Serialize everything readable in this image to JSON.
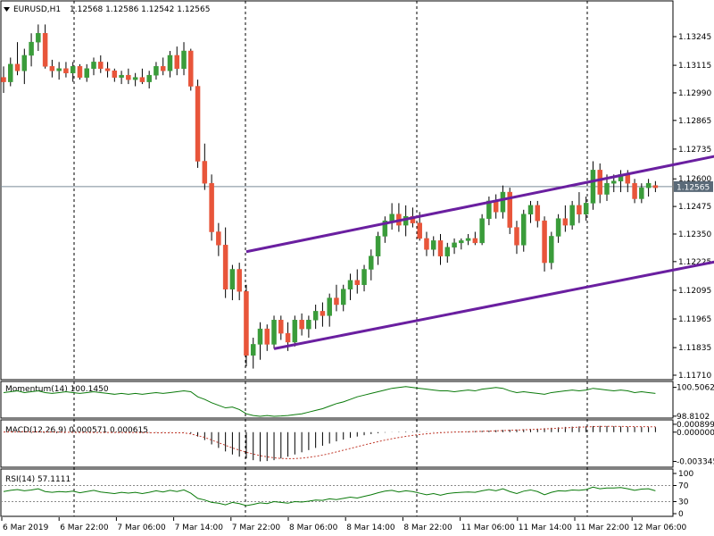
{
  "window": {
    "symbol_label": "EURUSD,H1",
    "ohlc_values": "1.12568 1.12586 1.12542 1.12565",
    "menu_arrow": "triangle-down-icon"
  },
  "colors": {
    "bull_candle": "#3a9c3a",
    "bear_candle": "#e8553a",
    "channel": "#6a1fa0",
    "indicator_line": "#0a7a0a",
    "macd_signal": "#c0392b",
    "grid_dash": "#000000",
    "frame": "#000000",
    "price_tag_bg": "#5a6a78"
  },
  "chart_data": {
    "type": "candlestick",
    "symbol": "EURUSD",
    "timeframe": "H1",
    "current_price": 1.12565,
    "current_price_label": "1.12565",
    "y_ticks": [
      "1.13245",
      "1.13115",
      "1.12990",
      "1.12865",
      "1.12735",
      "1.12600",
      "1.12475",
      "1.12350",
      "1.12225",
      "1.12095",
      "1.11965",
      "1.11835",
      "1.11710"
    ],
    "ylim": [
      1.1171,
      1.1333
    ],
    "x_tick_labels": [
      "6 Mar 2019",
      "6 Mar 22:00",
      "7 Mar 06:00",
      "7 Mar 14:00",
      "7 Mar 22:00",
      "8 Mar 06:00",
      "8 Mar 14:00",
      "8 Mar 22:00",
      "11 Mar 06:00",
      "11 Mar 14:00",
      "11 Mar 22:00",
      "12 Mar 06:00"
    ],
    "vertical_markers": [
      "6 Mar 22:00",
      "7 Mar 22:00",
      "8 Mar 22:00",
      "11 Mar 22:00"
    ],
    "candles": [
      [
        1.1306,
        1.1311,
        1.1299,
        1.1304
      ],
      [
        1.1304,
        1.1315,
        1.1302,
        1.1312
      ],
      [
        1.1312,
        1.1322,
        1.1307,
        1.1309
      ],
      [
        1.1309,
        1.1319,
        1.1303,
        1.1316
      ],
      [
        1.1316,
        1.1326,
        1.1311,
        1.1322
      ],
      [
        1.1322,
        1.133,
        1.1318,
        1.1326
      ],
      [
        1.1326,
        1.133,
        1.131,
        1.1311
      ],
      [
        1.1311,
        1.1314,
        1.1306,
        1.1309
      ],
      [
        1.1309,
        1.1313,
        1.1305,
        1.131
      ],
      [
        1.131,
        1.1313,
        1.1306,
        1.1308
      ],
      [
        1.1308,
        1.1313,
        1.1304,
        1.1311
      ],
      [
        1.1311,
        1.1312,
        1.1305,
        1.1306
      ],
      [
        1.1306,
        1.1312,
        1.1304,
        1.131
      ],
      [
        1.131,
        1.1315,
        1.1307,
        1.1313
      ],
      [
        1.1313,
        1.1316,
        1.1308,
        1.131
      ],
      [
        1.131,
        1.1313,
        1.1306,
        1.1309
      ],
      [
        1.1309,
        1.131,
        1.1304,
        1.1306
      ],
      [
        1.1306,
        1.1309,
        1.1303,
        1.1307
      ],
      [
        1.1307,
        1.131,
        1.1303,
        1.1305
      ],
      [
        1.1305,
        1.1308,
        1.1302,
        1.1306
      ],
      [
        1.1306,
        1.131,
        1.1303,
        1.1304
      ],
      [
        1.1304,
        1.1309,
        1.1301,
        1.1307
      ],
      [
        1.1307,
        1.1313,
        1.1305,
        1.1311
      ],
      [
        1.1311,
        1.1315,
        1.1307,
        1.1309
      ],
      [
        1.1309,
        1.1318,
        1.1306,
        1.1316
      ],
      [
        1.1316,
        1.132,
        1.1307,
        1.131
      ],
      [
        1.131,
        1.1322,
        1.1307,
        1.1318
      ],
      [
        1.1318,
        1.1319,
        1.13,
        1.1302
      ],
      [
        1.1302,
        1.1305,
        1.1265,
        1.1268
      ],
      [
        1.1268,
        1.1276,
        1.1255,
        1.1258
      ],
      [
        1.1258,
        1.1262,
        1.1232,
        1.1236
      ],
      [
        1.1236,
        1.124,
        1.1225,
        1.123
      ],
      [
        1.123,
        1.1238,
        1.1206,
        1.121
      ],
      [
        1.121,
        1.1221,
        1.1205,
        1.1219
      ],
      [
        1.1219,
        1.1222,
        1.1205,
        1.1209
      ],
      [
        1.1209,
        1.1212,
        1.1175,
        1.118
      ],
      [
        1.118,
        1.1188,
        1.1174,
        1.1185
      ],
      [
        1.1185,
        1.1195,
        1.1178,
        1.1192
      ],
      [
        1.1192,
        1.1194,
        1.1182,
        1.1185
      ],
      [
        1.1185,
        1.1198,
        1.1183,
        1.1196
      ],
      [
        1.1196,
        1.1198,
        1.1187,
        1.119
      ],
      [
        1.119,
        1.1195,
        1.1182,
        1.1186
      ],
      [
        1.1186,
        1.1198,
        1.1184,
        1.1196
      ],
      [
        1.1196,
        1.1199,
        1.1189,
        1.1192
      ],
      [
        1.1192,
        1.1198,
        1.1188,
        1.1196
      ],
      [
        1.1196,
        1.1203,
        1.1192,
        1.12
      ],
      [
        1.12,
        1.1204,
        1.1193,
        1.1198
      ],
      [
        1.1198,
        1.1208,
        1.1193,
        1.1206
      ],
      [
        1.1206,
        1.1212,
        1.12,
        1.1203
      ],
      [
        1.1203,
        1.1212,
        1.12,
        1.121
      ],
      [
        1.121,
        1.1217,
        1.1205,
        1.1214
      ],
      [
        1.1214,
        1.1219,
        1.1208,
        1.1212
      ],
      [
        1.1212,
        1.1221,
        1.1209,
        1.1219
      ],
      [
        1.1219,
        1.1228,
        1.1214,
        1.1225
      ],
      [
        1.1225,
        1.1236,
        1.1221,
        1.1234
      ],
      [
        1.1234,
        1.1243,
        1.1231,
        1.1241
      ],
      [
        1.1241,
        1.1249,
        1.1237,
        1.1244
      ],
      [
        1.1244,
        1.1249,
        1.1236,
        1.1239
      ],
      [
        1.1239,
        1.1248,
        1.1234,
        1.1243
      ],
      [
        1.1243,
        1.1247,
        1.1238,
        1.124
      ],
      [
        1.124,
        1.1245,
        1.1232,
        1.1233
      ],
      [
        1.1233,
        1.1236,
        1.1225,
        1.1228
      ],
      [
        1.1228,
        1.1234,
        1.1225,
        1.1232
      ],
      [
        1.1232,
        1.1235,
        1.1221,
        1.1225
      ],
      [
        1.1225,
        1.1231,
        1.1222,
        1.1229
      ],
      [
        1.1229,
        1.1233,
        1.1226,
        1.1231
      ],
      [
        1.1231,
        1.1233,
        1.1228,
        1.1232
      ],
      [
        1.1232,
        1.1235,
        1.123,
        1.1233
      ],
      [
        1.1233,
        1.1236,
        1.123,
        1.1231
      ],
      [
        1.1231,
        1.1244,
        1.123,
        1.1242
      ],
      [
        1.1242,
        1.1252,
        1.1239,
        1.125
      ],
      [
        1.125,
        1.1253,
        1.1242,
        1.1245
      ],
      [
        1.1245,
        1.1257,
        1.1242,
        1.1254
      ],
      [
        1.1254,
        1.1256,
        1.1235,
        1.1238
      ],
      [
        1.1238,
        1.1241,
        1.1226,
        1.123
      ],
      [
        1.123,
        1.1246,
        1.1227,
        1.1244
      ],
      [
        1.1244,
        1.125,
        1.124,
        1.1248
      ],
      [
        1.1248,
        1.125,
        1.1238,
        1.1241
      ],
      [
        1.1241,
        1.1243,
        1.1218,
        1.1222
      ],
      [
        1.1222,
        1.1236,
        1.1219,
        1.1234
      ],
      [
        1.1234,
        1.1244,
        1.1231,
        1.1242
      ],
      [
        1.1242,
        1.1248,
        1.1236,
        1.1239
      ],
      [
        1.1239,
        1.125,
        1.1237,
        1.1248
      ],
      [
        1.1248,
        1.1254,
        1.124,
        1.1244
      ],
      [
        1.1244,
        1.1252,
        1.1241,
        1.1249
      ],
      [
        1.1249,
        1.1268,
        1.1246,
        1.1264
      ],
      [
        1.1264,
        1.1267,
        1.1249,
        1.1253
      ],
      [
        1.1253,
        1.1262,
        1.125,
        1.1258
      ],
      [
        1.1258,
        1.1262,
        1.1254,
        1.1259
      ],
      [
        1.1259,
        1.1264,
        1.1254,
        1.1262
      ],
      [
        1.1262,
        1.1264,
        1.1254,
        1.1258
      ],
      [
        1.1258,
        1.126,
        1.1249,
        1.1251
      ],
      [
        1.1251,
        1.1258,
        1.1249,
        1.1256
      ],
      [
        1.1256,
        1.126,
        1.1252,
        1.1258
      ],
      [
        1.1257,
        1.1259,
        1.1254,
        1.1256
      ]
    ],
    "channel_lines": [
      {
        "name": "upper",
        "x_index": [
          35,
          110
        ],
        "y": [
          1.1227,
          1.1275
        ]
      },
      {
        "name": "lower",
        "x_index": [
          39,
          110
        ],
        "y": [
          1.1183,
          1.1227
        ]
      }
    ],
    "indicators": {
      "momentum": {
        "label": "Momentum(14) 100.1450",
        "y_ticks": [
          "100.5062",
          "98.8102"
        ],
        "ylim": [
          98.75,
          100.75
        ],
        "values": [
          100.2,
          100.25,
          100.3,
          100.2,
          100.25,
          100.3,
          100.2,
          100.15,
          100.2,
          100.25,
          100.2,
          100.15,
          100.2,
          100.25,
          100.2,
          100.15,
          100.1,
          100.15,
          100.1,
          100.15,
          100.1,
          100.15,
          100.2,
          100.15,
          100.2,
          100.25,
          100.3,
          100.25,
          99.95,
          99.8,
          99.6,
          99.45,
          99.3,
          99.35,
          99.2,
          98.95,
          98.85,
          98.8,
          98.85,
          98.8,
          98.82,
          98.85,
          98.9,
          98.95,
          99.05,
          99.15,
          99.25,
          99.4,
          99.55,
          99.65,
          99.8,
          99.95,
          100.05,
          100.15,
          100.25,
          100.35,
          100.45,
          100.5,
          100.55,
          100.5,
          100.45,
          100.4,
          100.35,
          100.3,
          100.3,
          100.25,
          100.3,
          100.35,
          100.3,
          100.4,
          100.45,
          100.5,
          100.45,
          100.3,
          100.2,
          100.25,
          100.2,
          100.15,
          100.1,
          100.2,
          100.25,
          100.3,
          100.35,
          100.3,
          100.35,
          100.45,
          100.4,
          100.35,
          100.3,
          100.35,
          100.3,
          100.2,
          100.25,
          100.2,
          100.15
        ]
      },
      "macd": {
        "label": "MACD(12,26,9) 0.000571 0.000615",
        "y_ticks": [
          "0.000899",
          "0.000000",
          "-0.003345"
        ],
        "ylim": [
          -0.0038,
          0.0012
        ],
        "histogram_first_index": 20,
        "histogram": [
          -8e-05,
          -6e-05,
          -4e-05,
          -3e-05,
          -2e-05,
          -1e-05,
          -2e-05,
          -0.00015,
          -0.0005,
          -0.0009,
          -0.0014,
          -0.0018,
          -0.0022,
          -0.00255,
          -0.0028,
          -0.003,
          -0.0032,
          -0.00334,
          -0.0033,
          -0.0032,
          -0.003,
          -0.0028,
          -0.00255,
          -0.0023,
          -0.00205,
          -0.0018,
          -0.00155,
          -0.0013,
          -0.00105,
          -0.00085,
          -0.00065,
          -0.0005,
          -0.00035,
          -0.00022,
          -0.00012,
          -5e-05,
          2e-05,
          4e-05,
          6e-05,
          5e-05,
          4e-05,
          3e-05,
          2e-05,
          2e-05,
          3e-05,
          4e-05,
          6e-05,
          8e-05,
          0.00012,
          0.00015,
          0.00018,
          0.00022,
          0.00025,
          0.00028,
          0.0003,
          0.00033,
          0.00036,
          0.0004,
          0.00045,
          0.0005,
          0.00055,
          0.0006,
          0.00063,
          0.00066,
          0.00068,
          0.0007,
          0.00072,
          0.0007,
          0.00068,
          0.00065,
          0.00062,
          0.0006,
          0.00058,
          0.00057,
          0.00057
        ],
        "signal": [
          2e-05,
          3e-05,
          4e-05,
          5e-05,
          4e-05,
          3e-05,
          2e-05,
          1e-05,
          0.0,
          -1e-05,
          -2e-05,
          -3e-05,
          -3e-05,
          -4e-05,
          -4e-05,
          -4e-05,
          -4e-05,
          -4e-05,
          -4e-05,
          -4e-05,
          -5e-05,
          -6e-05,
          -7e-05,
          -8e-05,
          -8e-05,
          -7e-05,
          -8e-05,
          -0.0002,
          -0.0004,
          -0.0006,
          -0.0009,
          -0.0012,
          -0.0015,
          -0.0018,
          -0.00205,
          -0.0023,
          -0.0025,
          -0.00268,
          -0.00282,
          -0.00293,
          -0.003,
          -0.00303,
          -0.00302,
          -0.00297,
          -0.00288,
          -0.00276,
          -0.00262,
          -0.00245,
          -0.00226,
          -0.00206,
          -0.00186,
          -0.00166,
          -0.00146,
          -0.00127,
          -0.00108,
          -0.00091,
          -0.00075,
          -0.00061,
          -0.00048,
          -0.00037,
          -0.00027,
          -0.00019,
          -0.00012,
          -6e-05,
          -2e-05,
          1e-05,
          3e-05,
          5e-05,
          7e-05,
          0.0001,
          0.00012,
          0.00015,
          0.00018,
          0.00021,
          0.00024,
          0.00027,
          0.0003,
          0.00033,
          0.00037,
          0.00041,
          0.00045,
          0.00049,
          0.00053,
          0.00057,
          0.0006,
          0.00063,
          0.00065,
          0.00066,
          0.00066,
          0.00065,
          0.00064,
          0.00063,
          0.00062,
          0.00062,
          0.00061
        ]
      },
      "rsi": {
        "label": "RSI(14) 57.1111",
        "y_ticks": [
          "100",
          "70",
          "30",
          "0"
        ],
        "ylim": [
          0,
          100
        ],
        "levels": [
          70,
          30
        ],
        "values": [
          55,
          58,
          60,
          57,
          59,
          62,
          55,
          53,
          55,
          54,
          56,
          52,
          55,
          58,
          54,
          52,
          50,
          53,
          51,
          53,
          50,
          53,
          57,
          54,
          58,
          55,
          59,
          51,
          38,
          34,
          28,
          26,
          22,
          28,
          25,
          20,
          23,
          27,
          25,
          30,
          28,
          26,
          30,
          29,
          31,
          34,
          33,
          37,
          35,
          38,
          41,
          39,
          43,
          47,
          52,
          56,
          58,
          54,
          57,
          55,
          51,
          47,
          50,
          46,
          50,
          52,
          53,
          54,
          53,
          57,
          60,
          57,
          62,
          55,
          50,
          56,
          59,
          55,
          47,
          53,
          57,
          56,
          59,
          58,
          60,
          66,
          62,
          64,
          64,
          65,
          62,
          58,
          61,
          62,
          57
        ]
      }
    }
  }
}
